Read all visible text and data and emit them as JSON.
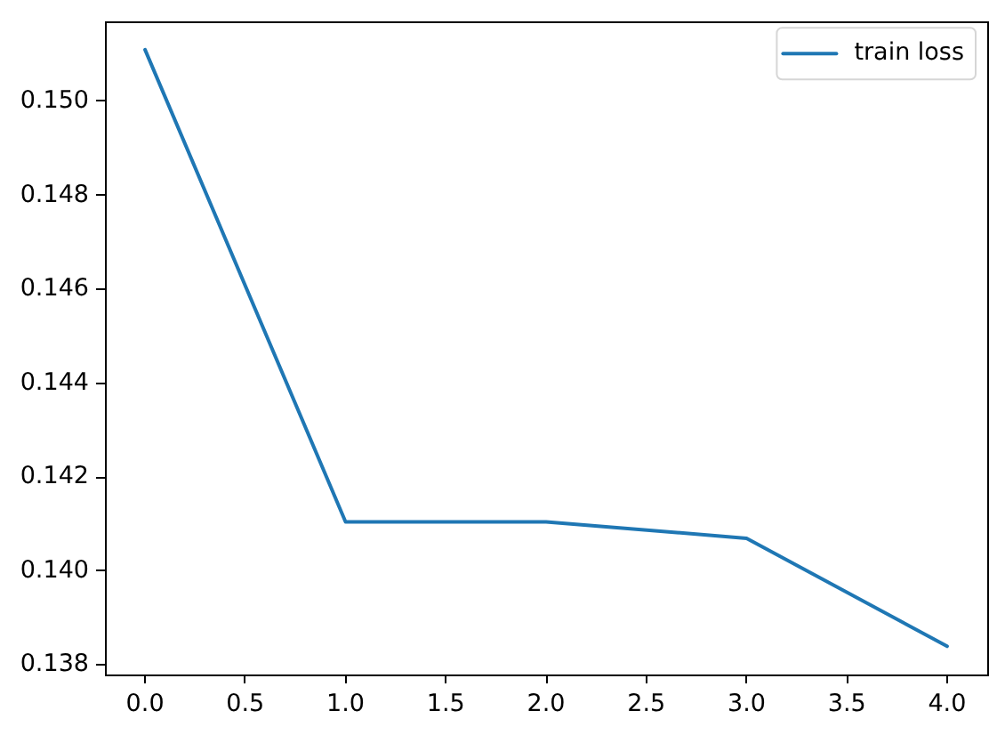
{
  "chart_data": {
    "type": "line",
    "x": [
      0,
      1,
      2,
      3,
      4
    ],
    "series": [
      {
        "name": "train loss",
        "color": "#1f77b4",
        "values": [
          0.1511,
          0.14105,
          0.14105,
          0.1407,
          0.1384
        ]
      }
    ],
    "xlim": [
      -0.2,
      4.2
    ],
    "xticks": [
      {
        "value": 0,
        "label": "0.0"
      },
      0.5,
      {
        "value": 1,
        "label": "1.0"
      },
      1.5,
      {
        "value": 2,
        "label": "2.0"
      },
      2.5,
      {
        "value": 3,
        "label": "3.0"
      },
      3.5,
      {
        "value": 4,
        "label": "4.0"
      }
    ],
    "ylim": [
      0.1378,
      0.1517
    ],
    "yticks": [
      0.138,
      {
        "value": 0.14,
        "label": "0.140"
      },
      0.142,
      0.144,
      0.146,
      0.148,
      {
        "value": 0.15,
        "label": "0.150"
      }
    ],
    "legend": "top right"
  }
}
